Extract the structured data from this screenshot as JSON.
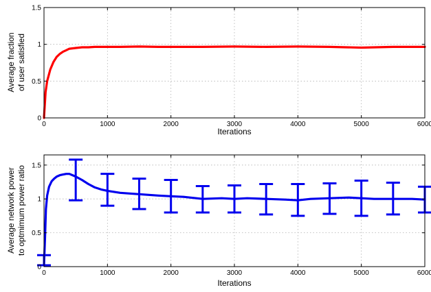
{
  "colors": {
    "top_series": "#ff0000",
    "bottom_series": "#0000ee",
    "grid": "#b0b0b0",
    "axis": "#000000"
  },
  "chart_data": [
    {
      "type": "line",
      "xlabel": "Iterations",
      "ylabel_lines": [
        "Average fraction",
        "of user satisfied"
      ],
      "xlim": [
        0,
        6000
      ],
      "ylim": [
        0,
        1.5
      ],
      "xticks": [
        "0",
        "1000",
        "2000",
        "3000",
        "4000",
        "5000",
        "6000"
      ],
      "xtick_values": [
        0,
        1000,
        2000,
        3000,
        4000,
        5000,
        6000
      ],
      "yticks": [
        "0",
        "0.5",
        "1",
        "1.5"
      ],
      "ytick_values": [
        0,
        0.5,
        1,
        1.5
      ],
      "grid": true,
      "series": [
        {
          "color": "#ff0000",
          "x": [
            0,
            25,
            50,
            100,
            150,
            200,
            250,
            300,
            350,
            400,
            500,
            600,
            700,
            800,
            1000,
            1200,
            1500,
            1800,
            2000,
            2500,
            3000,
            3500,
            4000,
            4500,
            5000,
            5500,
            6000
          ],
          "y": [
            0.0,
            0.35,
            0.5,
            0.66,
            0.76,
            0.83,
            0.87,
            0.9,
            0.92,
            0.94,
            0.95,
            0.96,
            0.96,
            0.965,
            0.965,
            0.965,
            0.97,
            0.965,
            0.965,
            0.965,
            0.97,
            0.965,
            0.97,
            0.965,
            0.955,
            0.965,
            0.965
          ]
        }
      ]
    },
    {
      "type": "line",
      "xlabel": "Iterations",
      "ylabel_lines": [
        "Average network power",
        "to optmimum power ratio"
      ],
      "xlim": [
        0,
        6000
      ],
      "ylim": [
        0,
        1.65
      ],
      "xticks": [
        "0",
        "1000",
        "2000",
        "3000",
        "4000",
        "5000",
        "6000"
      ],
      "xtick_values": [
        0,
        1000,
        2000,
        3000,
        4000,
        5000,
        6000
      ],
      "yticks": [
        "0",
        "0.5",
        "1",
        "1.5"
      ],
      "ytick_values": [
        0,
        0.5,
        1,
        1.5
      ],
      "grid": true,
      "series": [
        {
          "color": "#0000ee",
          "x": [
            0,
            15,
            30,
            50,
            80,
            120,
            160,
            200,
            250,
            300,
            350,
            400,
            450,
            500,
            600,
            700,
            800,
            900,
            1000,
            1200,
            1500,
            1800,
            2000,
            2200,
            2500,
            2800,
            3000,
            3200,
            3500,
            3800,
            4000,
            4200,
            4500,
            4800,
            5000,
            5200,
            5500,
            5800,
            6000
          ],
          "y": [
            0.02,
            0.4,
            0.85,
            1.05,
            1.18,
            1.26,
            1.3,
            1.33,
            1.35,
            1.36,
            1.37,
            1.37,
            1.35,
            1.33,
            1.28,
            1.22,
            1.17,
            1.14,
            1.12,
            1.09,
            1.07,
            1.05,
            1.04,
            1.03,
            1.0,
            1.01,
            1.0,
            1.01,
            1.0,
            0.99,
            0.98,
            1.0,
            1.01,
            1.02,
            1.01,
            1.0,
            1.0,
            1.0,
            0.99
          ]
        }
      ],
      "error_bars": [
        {
          "x": 0,
          "center": 0.02,
          "low": 0.02,
          "high": 0.17
        },
        {
          "x": 500,
          "center": 1.33,
          "low": 0.98,
          "high": 1.58
        },
        {
          "x": 1000,
          "center": 1.12,
          "low": 0.9,
          "high": 1.37
        },
        {
          "x": 1500,
          "center": 1.07,
          "low": 0.85,
          "high": 1.3
        },
        {
          "x": 2000,
          "center": 1.04,
          "low": 0.8,
          "high": 1.28
        },
        {
          "x": 2500,
          "center": 1.0,
          "low": 0.8,
          "high": 1.19
        },
        {
          "x": 3000,
          "center": 1.0,
          "low": 0.8,
          "high": 1.2
        },
        {
          "x": 3500,
          "center": 1.0,
          "low": 0.77,
          "high": 1.22
        },
        {
          "x": 4000,
          "center": 0.98,
          "low": 0.75,
          "high": 1.22
        },
        {
          "x": 4500,
          "center": 1.01,
          "low": 0.78,
          "high": 1.23
        },
        {
          "x": 5000,
          "center": 1.01,
          "low": 0.75,
          "high": 1.27
        },
        {
          "x": 5500,
          "center": 1.0,
          "low": 0.77,
          "high": 1.24
        },
        {
          "x": 6000,
          "center": 0.99,
          "low": 0.8,
          "high": 1.18
        }
      ]
    }
  ]
}
